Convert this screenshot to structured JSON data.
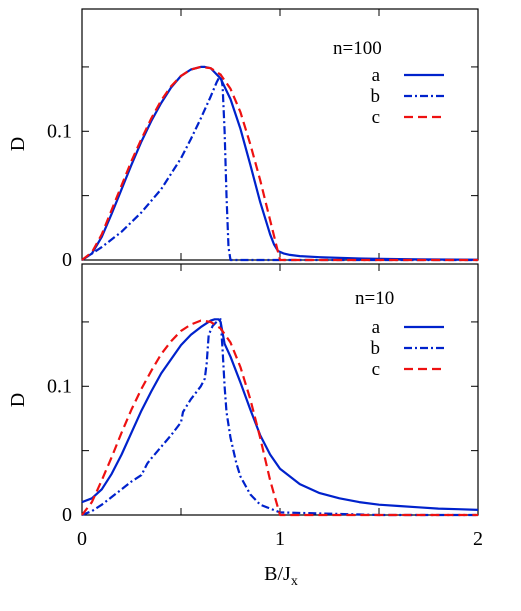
{
  "chart_data": [
    {
      "type": "line",
      "title": "",
      "annotation": "n=100",
      "xlabel": "",
      "ylabel": "D",
      "xlim": [
        0,
        2
      ],
      "ylim": [
        0,
        0.195
      ],
      "yticks": [
        0,
        0.1
      ],
      "yticklabels": [
        "0",
        "0.1"
      ],
      "legend_position": "top-right",
      "colors": {
        "a": "#0022cc",
        "b": "#0022cc",
        "c": "#ee1111"
      },
      "series": [
        {
          "name": "a",
          "style": "solid",
          "x": [
            0.0,
            0.05,
            0.1,
            0.15,
            0.2,
            0.25,
            0.3,
            0.35,
            0.4,
            0.45,
            0.5,
            0.55,
            0.6,
            0.62,
            0.65,
            0.7,
            0.75,
            0.8,
            0.85,
            0.9,
            0.95,
            0.97,
            0.99,
            1.02,
            1.05,
            1.1,
            1.2,
            1.3,
            1.4,
            1.5,
            1.6,
            1.7,
            1.8,
            1.9,
            2.0
          ],
          "y": [
            0.0,
            0.005,
            0.018,
            0.036,
            0.055,
            0.074,
            0.092,
            0.108,
            0.122,
            0.134,
            0.143,
            0.148,
            0.15,
            0.15,
            0.149,
            0.141,
            0.125,
            0.102,
            0.074,
            0.045,
            0.02,
            0.012,
            0.007,
            0.005,
            0.004,
            0.003,
            0.0022,
            0.0016,
            0.0012,
            0.0009,
            0.0007,
            0.0005,
            0.0004,
            0.0003,
            0.0002
          ]
        },
        {
          "name": "b",
          "style": "dash-dot",
          "x": [
            0.0,
            0.1,
            0.2,
            0.3,
            0.4,
            0.5,
            0.55,
            0.6,
            0.65,
            0.68,
            0.7,
            0.71,
            0.72,
            0.73,
            0.74,
            0.75,
            0.8,
            1.0,
            1.5,
            2.0
          ],
          "y": [
            0.0,
            0.01,
            0.022,
            0.037,
            0.055,
            0.079,
            0.094,
            0.11,
            0.127,
            0.138,
            0.144,
            0.135,
            0.1,
            0.05,
            0.01,
            0.0,
            0.0,
            0.0,
            0.0,
            0.0
          ]
        },
        {
          "name": "c",
          "style": "dashed",
          "x": [
            0.0,
            0.05,
            0.1,
            0.15,
            0.2,
            0.25,
            0.3,
            0.35,
            0.4,
            0.45,
            0.5,
            0.55,
            0.6,
            0.65,
            0.7,
            0.75,
            0.8,
            0.85,
            0.9,
            0.95,
            1.0,
            1.05,
            1.2,
            1.5,
            2.0
          ],
          "y": [
            0.0,
            0.006,
            0.02,
            0.039,
            0.058,
            0.077,
            0.094,
            0.11,
            0.124,
            0.135,
            0.143,
            0.148,
            0.15,
            0.149,
            0.144,
            0.133,
            0.115,
            0.09,
            0.062,
            0.031,
            0.0,
            0.0,
            0.0,
            0.0,
            0.0
          ]
        }
      ]
    },
    {
      "type": "line",
      "title": "",
      "annotation": "n=10",
      "xlabel": "B/J_x",
      "ylabel": "D",
      "xlim": [
        0,
        2
      ],
      "ylim": [
        0,
        0.195
      ],
      "xticks": [
        0,
        1,
        2
      ],
      "xticklabels": [
        "0",
        "1",
        "2"
      ],
      "yticks": [
        0,
        0.1
      ],
      "yticklabels": [
        "0",
        "0.1"
      ],
      "legend_position": "top-right",
      "colors": {
        "a": "#0022cc",
        "b": "#0022cc",
        "c": "#ee1111"
      },
      "series": [
        {
          "name": "a",
          "style": "solid",
          "x": [
            0.0,
            0.05,
            0.1,
            0.15,
            0.2,
            0.25,
            0.3,
            0.35,
            0.4,
            0.45,
            0.5,
            0.55,
            0.6,
            0.63,
            0.65,
            0.67,
            0.69,
            0.7,
            0.72,
            0.75,
            0.8,
            0.85,
            0.9,
            0.95,
            1.0,
            1.1,
            1.2,
            1.3,
            1.4,
            1.5,
            1.6,
            1.7,
            1.8,
            1.9,
            2.0
          ],
          "y": [
            0.01,
            0.013,
            0.02,
            0.032,
            0.047,
            0.064,
            0.081,
            0.096,
            0.11,
            0.121,
            0.132,
            0.14,
            0.146,
            0.149,
            0.151,
            0.152,
            0.152,
            0.15,
            0.133,
            0.123,
            0.103,
            0.082,
            0.062,
            0.047,
            0.036,
            0.024,
            0.017,
            0.013,
            0.01,
            0.008,
            0.007,
            0.006,
            0.005,
            0.0045,
            0.004
          ]
        },
        {
          "name": "b",
          "style": "dash-dot",
          "x": [
            0.0,
            0.05,
            0.1,
            0.15,
            0.2,
            0.25,
            0.3,
            0.31,
            0.33,
            0.35,
            0.4,
            0.45,
            0.5,
            0.51,
            0.53,
            0.55,
            0.6,
            0.62,
            0.63,
            0.64,
            0.66,
            0.68,
            0.7,
            0.71,
            0.72,
            0.73,
            0.75,
            0.78,
            0.8,
            0.85,
            0.9,
            1.0,
            1.5,
            2.0
          ],
          "y": [
            0.0,
            0.003,
            0.008,
            0.014,
            0.02,
            0.026,
            0.031,
            0.034,
            0.04,
            0.044,
            0.053,
            0.062,
            0.072,
            0.08,
            0.085,
            0.09,
            0.1,
            0.106,
            0.118,
            0.14,
            0.147,
            0.15,
            0.152,
            0.128,
            0.1,
            0.08,
            0.06,
            0.04,
            0.03,
            0.016,
            0.008,
            0.002,
            0.0,
            0.0
          ]
        },
        {
          "name": "c",
          "style": "dashed",
          "x": [
            0.0,
            0.05,
            0.1,
            0.15,
            0.2,
            0.25,
            0.3,
            0.35,
            0.4,
            0.45,
            0.5,
            0.55,
            0.6,
            0.65,
            0.7,
            0.75,
            0.8,
            0.85,
            0.9,
            0.95,
            1.0,
            1.05,
            1.2,
            1.5,
            2.0
          ],
          "y": [
            0.0,
            0.01,
            0.027,
            0.045,
            0.064,
            0.082,
            0.098,
            0.112,
            0.125,
            0.135,
            0.143,
            0.148,
            0.151,
            0.15,
            0.145,
            0.134,
            0.115,
            0.09,
            0.06,
            0.027,
            0.0,
            0.0,
            0.0,
            0.0,
            0.0
          ]
        }
      ]
    }
  ]
}
